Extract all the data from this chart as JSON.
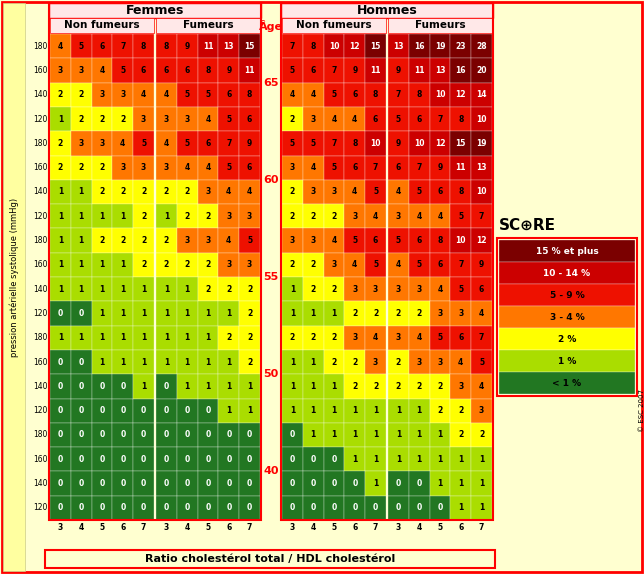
{
  "ylabel": "pression artérielle systolique (mmHg)",
  "xlabel": "Ratio cholestérol total / HDL cholestérol",
  "age_groups": [
    65,
    60,
    55,
    50,
    40
  ],
  "bp_labels": [
    180,
    160,
    140,
    120
  ],
  "chol_labels": [
    3,
    4,
    5,
    6,
    7
  ],
  "femmes_non_fumeurs": [
    [
      [
        4,
        5,
        6,
        7,
        8
      ],
      [
        3,
        3,
        4,
        5,
        6
      ],
      [
        2,
        2,
        3,
        3,
        4
      ],
      [
        1,
        2,
        2,
        2,
        3
      ]
    ],
    [
      [
        2,
        3,
        3,
        4,
        5
      ],
      [
        2,
        2,
        2,
        3,
        3
      ],
      [
        1,
        1,
        2,
        2,
        2
      ],
      [
        1,
        1,
        1,
        1,
        2
      ]
    ],
    [
      [
        1,
        1,
        2,
        2,
        2
      ],
      [
        1,
        1,
        1,
        1,
        2
      ],
      [
        1,
        1,
        1,
        1,
        1
      ],
      [
        0,
        0,
        1,
        1,
        1
      ]
    ],
    [
      [
        1,
        1,
        1,
        1,
        1
      ],
      [
        0,
        0,
        1,
        1,
        1
      ],
      [
        0,
        0,
        0,
        0,
        1
      ],
      [
        0,
        0,
        0,
        0,
        0
      ]
    ],
    [
      [
        0,
        0,
        0,
        0,
        0
      ],
      [
        0,
        0,
        0,
        0,
        0
      ],
      [
        0,
        0,
        0,
        0,
        0
      ],
      [
        0,
        0,
        0,
        0,
        0
      ]
    ]
  ],
  "femmes_fumeurs": [
    [
      [
        8,
        9,
        11,
        13,
        15
      ],
      [
        6,
        6,
        8,
        9,
        11
      ],
      [
        4,
        5,
        5,
        6,
        8
      ],
      [
        3,
        3,
        4,
        5,
        6
      ]
    ],
    [
      [
        4,
        5,
        6,
        7,
        9
      ],
      [
        3,
        4,
        4,
        5,
        6
      ],
      [
        2,
        2,
        3,
        4,
        4
      ],
      [
        1,
        2,
        2,
        3,
        3
      ]
    ],
    [
      [
        2,
        3,
        3,
        4,
        5
      ],
      [
        2,
        2,
        2,
        3,
        3
      ],
      [
        1,
        1,
        2,
        2,
        2
      ],
      [
        1,
        1,
        1,
        1,
        2
      ]
    ],
    [
      [
        1,
        1,
        1,
        2,
        2
      ],
      [
        1,
        1,
        1,
        1,
        2
      ],
      [
        0,
        1,
        1,
        1,
        1
      ],
      [
        0,
        0,
        0,
        1,
        1
      ]
    ],
    [
      [
        0,
        0,
        0,
        0,
        0
      ],
      [
        0,
        0,
        0,
        0,
        0
      ],
      [
        0,
        0,
        0,
        0,
        0
      ],
      [
        0,
        0,
        0,
        0,
        0
      ]
    ]
  ],
  "hommes_non_fumeurs": [
    [
      [
        7,
        8,
        10,
        12,
        15
      ],
      [
        5,
        6,
        7,
        9,
        11
      ],
      [
        4,
        4,
        5,
        6,
        8
      ],
      [
        2,
        3,
        4,
        4,
        6
      ]
    ],
    [
      [
        5,
        5,
        7,
        8,
        10
      ],
      [
        3,
        4,
        5,
        6,
        7
      ],
      [
        2,
        3,
        3,
        4,
        5
      ],
      [
        2,
        2,
        2,
        3,
        4
      ]
    ],
    [
      [
        3,
        3,
        4,
        5,
        6
      ],
      [
        2,
        2,
        3,
        4,
        5
      ],
      [
        1,
        2,
        2,
        3,
        3
      ],
      [
        1,
        1,
        1,
        2,
        2
      ]
    ],
    [
      [
        2,
        2,
        2,
        3,
        4
      ],
      [
        1,
        1,
        2,
        2,
        3
      ],
      [
        1,
        1,
        1,
        2,
        2
      ],
      [
        1,
        1,
        1,
        1,
        1
      ]
    ],
    [
      [
        0,
        1,
        1,
        1,
        1
      ],
      [
        0,
        0,
        0,
        1,
        1
      ],
      [
        0,
        0,
        0,
        0,
        1
      ],
      [
        0,
        0,
        0,
        0,
        0
      ]
    ]
  ],
  "hommes_fumeurs": [
    [
      [
        13,
        16,
        19,
        23,
        28
      ],
      [
        9,
        11,
        13,
        16,
        20
      ],
      [
        7,
        8,
        10,
        12,
        14
      ],
      [
        5,
        6,
        7,
        8,
        10
      ]
    ],
    [
      [
        9,
        10,
        12,
        15,
        19
      ],
      [
        6,
        7,
        9,
        11,
        13
      ],
      [
        4,
        5,
        6,
        8,
        10
      ],
      [
        3,
        4,
        4,
        5,
        7
      ]
    ],
    [
      [
        5,
        6,
        8,
        10,
        12
      ],
      [
        4,
        5,
        6,
        7,
        9
      ],
      [
        3,
        3,
        4,
        5,
        6
      ],
      [
        2,
        2,
        3,
        3,
        4
      ]
    ],
    [
      [
        3,
        4,
        5,
        6,
        7
      ],
      [
        2,
        3,
        3,
        4,
        5
      ],
      [
        2,
        2,
        2,
        3,
        4
      ],
      [
        1,
        1,
        2,
        2,
        3
      ]
    ],
    [
      [
        1,
        1,
        1,
        2,
        2
      ],
      [
        1,
        1,
        1,
        1,
        1
      ],
      [
        0,
        0,
        1,
        1,
        1
      ],
      [
        0,
        0,
        0,
        1,
        1
      ]
    ]
  ],
  "legend_labels": [
    "15 % et plus",
    "10 - 14 %",
    "5 - 9 %",
    "3 - 4 %",
    "2 %",
    "1 %",
    "< 1 %"
  ],
  "legend_colors": [
    "#7B0000",
    "#CC0000",
    "#EE1100",
    "#FF7700",
    "#FFFF00",
    "#AADD00",
    "#227722"
  ],
  "bg_color": "#FFFFD0",
  "header_bg": "#FFE8E8",
  "cell_outline": "#FFFFFF"
}
